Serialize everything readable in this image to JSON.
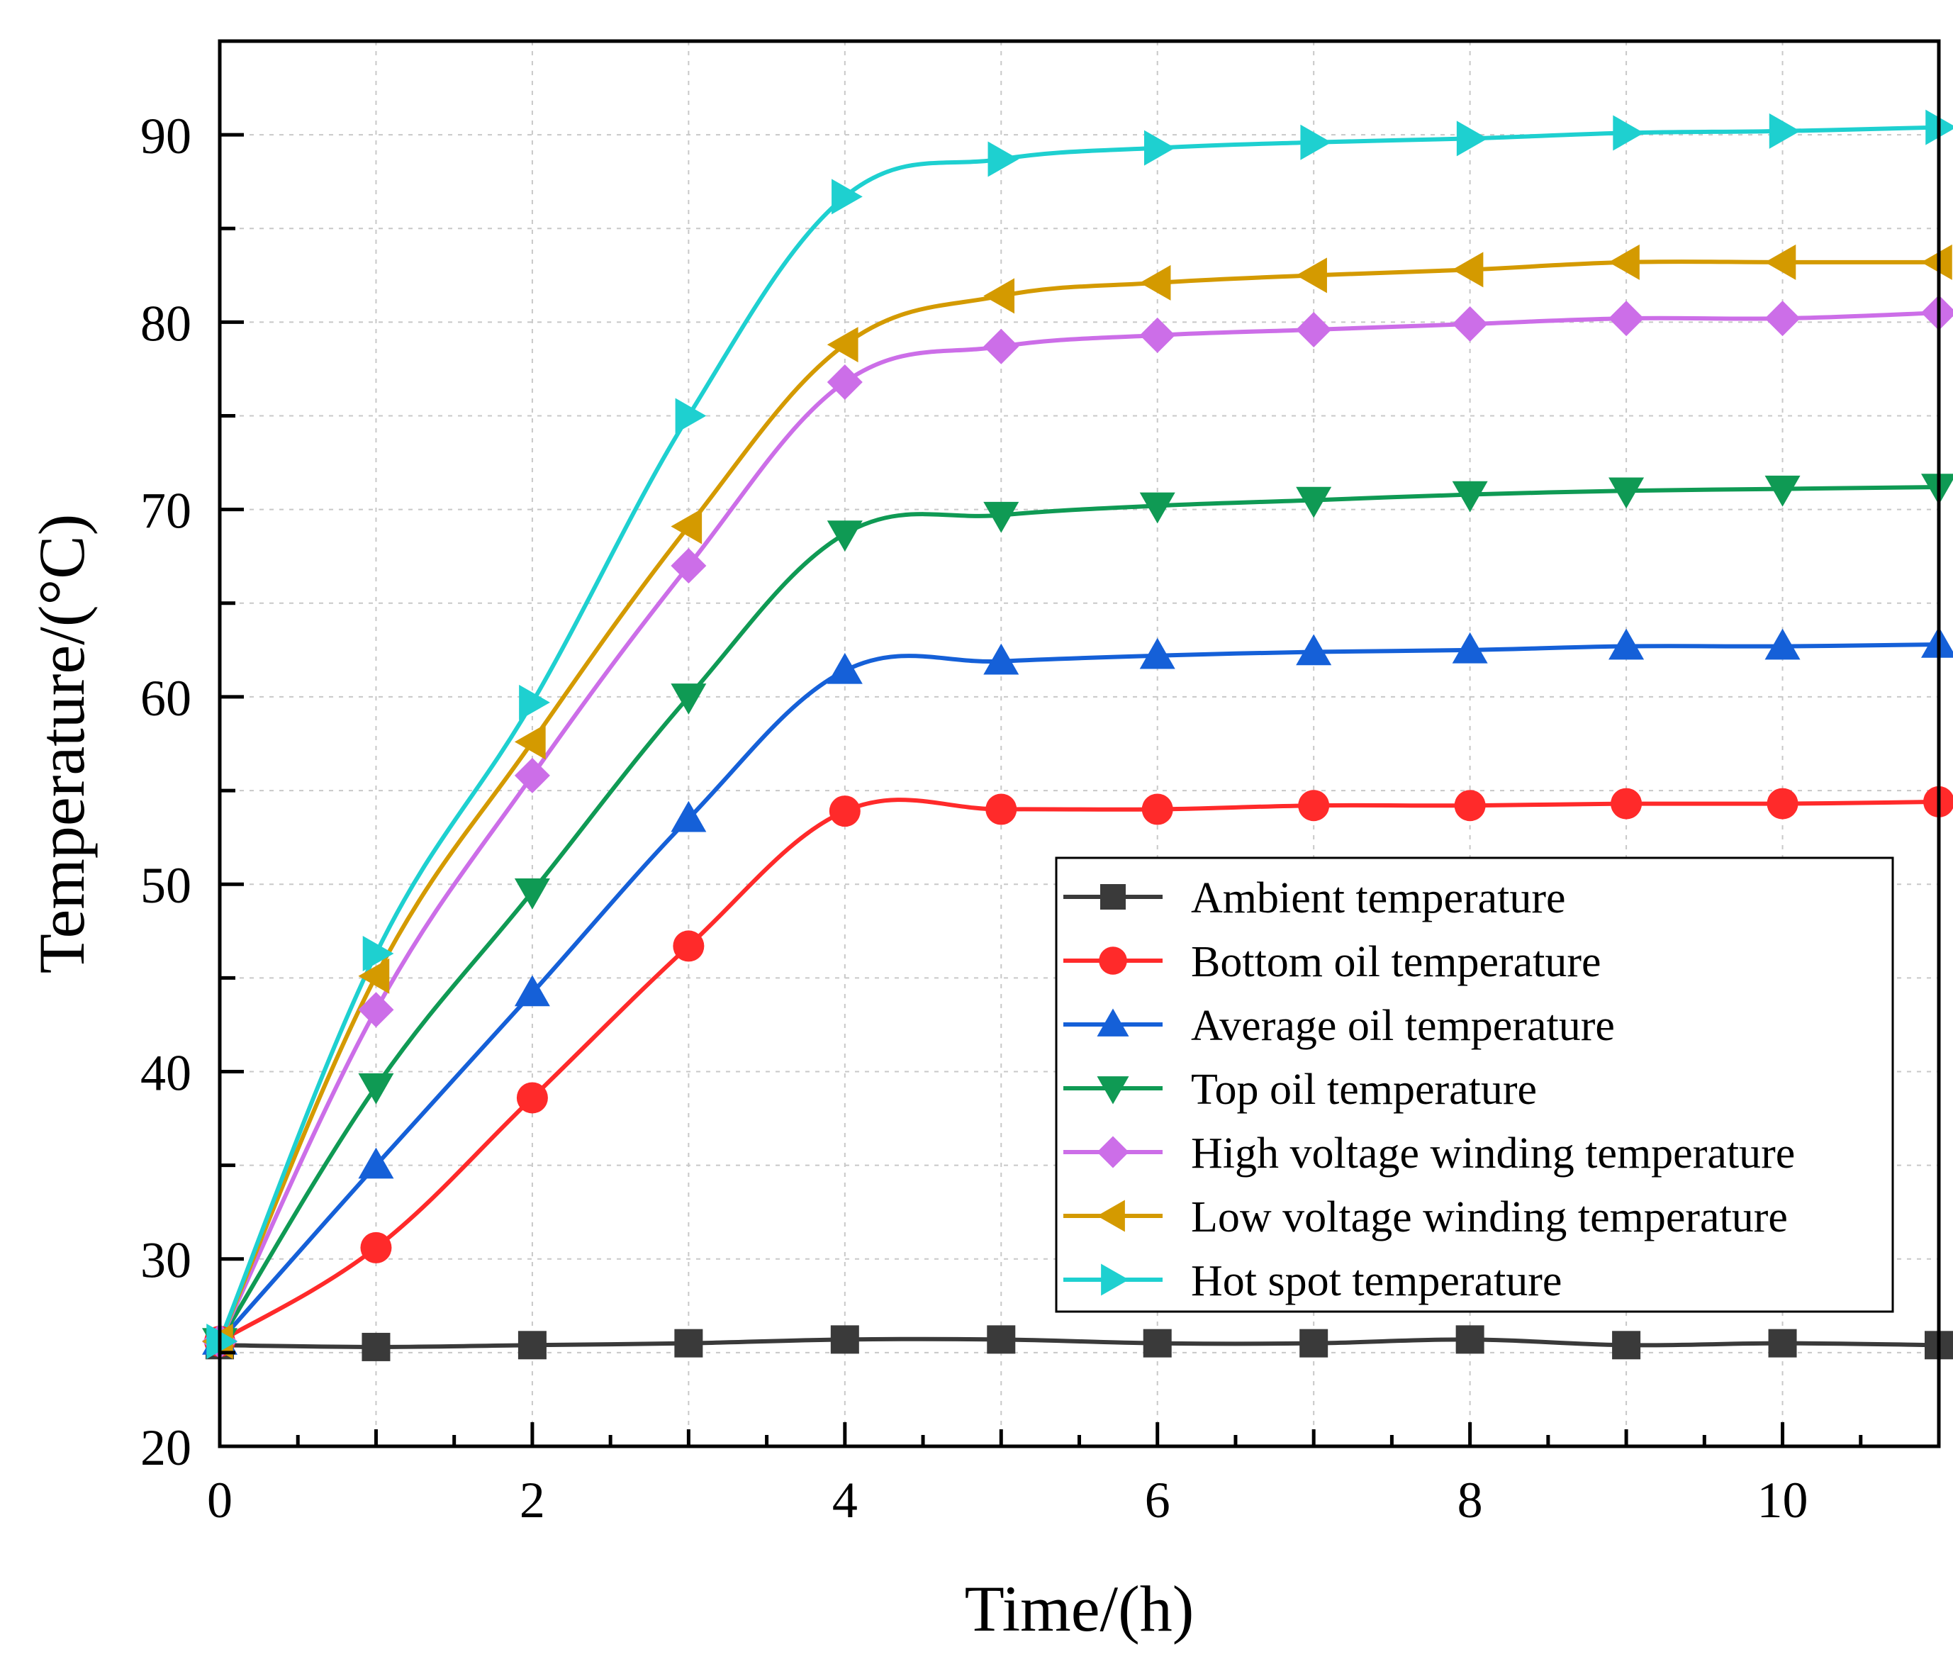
{
  "chart_data": {
    "type": "line",
    "title": "",
    "xlabel": "Time/(h)",
    "ylabel": "Temperature/(°C)",
    "xlim": [
      0,
      11
    ],
    "ylim": [
      20,
      95
    ],
    "xticks": [
      0,
      2,
      4,
      6,
      8,
      10
    ],
    "yticks": [
      20,
      30,
      40,
      50,
      60,
      70,
      80,
      90
    ],
    "x": [
      0,
      1,
      2,
      3,
      4,
      5,
      6,
      7,
      8,
      9,
      10,
      11
    ],
    "grid": true,
    "legend_position": "lower-right",
    "series": [
      {
        "name": "Ambient temperature",
        "color": "#3a3a3a",
        "marker": "square",
        "values": [
          25.4,
          25.3,
          25.4,
          25.5,
          25.7,
          25.7,
          25.5,
          25.5,
          25.7,
          25.4,
          25.5,
          25.4
        ]
      },
      {
        "name": "Bottom oil temperature",
        "color": "#ff2a2a",
        "marker": "circle",
        "values": [
          25.6,
          30.6,
          38.6,
          46.7,
          53.9,
          54.0,
          54.0,
          54.2,
          54.2,
          54.3,
          54.3,
          54.4
        ]
      },
      {
        "name": "Average oil temperature",
        "color": "#1560d8",
        "marker": "triangle-up",
        "values": [
          25.6,
          35.0,
          44.2,
          53.5,
          61.4,
          61.9,
          62.2,
          62.4,
          62.5,
          62.7,
          62.7,
          62.8
        ]
      },
      {
        "name": "Top oil temperature",
        "color": "#0f9a54",
        "marker": "triangle-down",
        "values": [
          25.6,
          39.2,
          49.6,
          60.0,
          68.7,
          69.7,
          70.2,
          70.5,
          70.8,
          71.0,
          71.1,
          71.2
        ]
      },
      {
        "name": "High voltage winding temperature",
        "color": "#cc6ee8",
        "marker": "diamond",
        "values": [
          25.6,
          43.3,
          55.8,
          67.0,
          76.8,
          78.7,
          79.3,
          79.6,
          79.9,
          80.2,
          80.2,
          80.5
        ]
      },
      {
        "name": "Low voltage winding temperature",
        "color": "#d49a00",
        "marker": "triangle-left",
        "values": [
          25.6,
          45.1,
          57.6,
          69.1,
          78.8,
          81.4,
          82.1,
          82.5,
          82.8,
          83.2,
          83.2,
          83.2
        ]
      },
      {
        "name": "Hot spot temperature",
        "color": "#1ed0d0",
        "marker": "triangle-right",
        "values": [
          25.6,
          46.3,
          59.7,
          75.0,
          86.7,
          88.7,
          89.3,
          89.6,
          89.8,
          90.1,
          90.2,
          90.4
        ]
      }
    ]
  }
}
